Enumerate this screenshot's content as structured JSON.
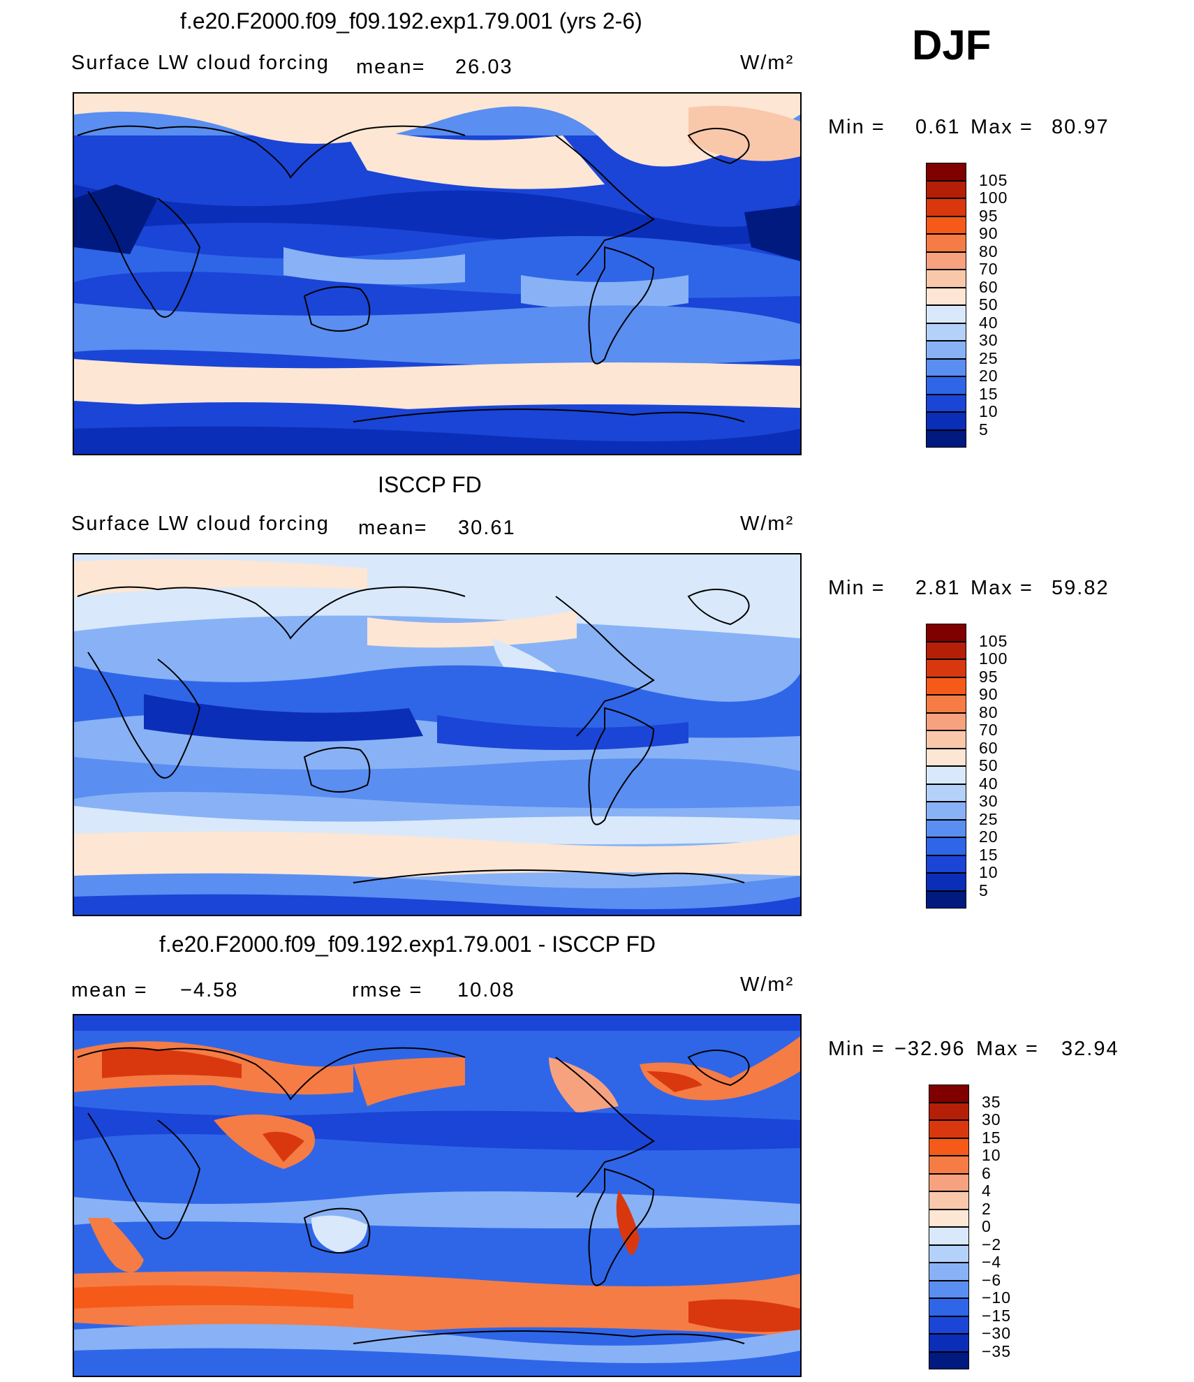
{
  "season": "DJF",
  "units": "W/m²",
  "panels": [
    {
      "title": "f.e20.F2000.f09_f09.192.exp1.79.001 (yrs 2-6)",
      "subtitle": "Surface LW cloud forcing",
      "mean_label": "mean=",
      "mean_value": "26.03",
      "min_label": "Min =",
      "min_value": "0.61",
      "max_label": "Max =",
      "max_value": "80.97",
      "colorbar_labels": [
        "105",
        "100",
        "95",
        "90",
        "80",
        "70",
        "60",
        "50",
        "40",
        "30",
        "25",
        "20",
        "15",
        "10",
        "5"
      ],
      "colorbar_colors": [
        "#800000",
        "#b51f08",
        "#d9380e",
        "#f55a19",
        "#f57c45",
        "#f7a27e",
        "#f9c8ab",
        "#fde6d3",
        "#d9e9fb",
        "#b4d1f9",
        "#88b2f5",
        "#5a8ef0",
        "#2f66e8",
        "#1a45d6",
        "#0b2eb8",
        "#001a80"
      ],
      "map_style": "model"
    },
    {
      "title": "ISCCP FD",
      "subtitle": "Surface LW cloud forcing",
      "mean_label": "mean=",
      "mean_value": "30.61",
      "min_label": "Min =",
      "min_value": "2.81",
      "max_label": "Max =",
      "max_value": "59.82",
      "colorbar_labels": [
        "105",
        "100",
        "95",
        "90",
        "80",
        "70",
        "60",
        "50",
        "40",
        "30",
        "25",
        "20",
        "15",
        "10",
        "5"
      ],
      "colorbar_colors": [
        "#800000",
        "#b51f08",
        "#d9380e",
        "#f55a19",
        "#f57c45",
        "#f7a27e",
        "#f9c8ab",
        "#fde6d3",
        "#d9e9fb",
        "#b4d1f9",
        "#88b2f5",
        "#5a8ef0",
        "#2f66e8",
        "#1a45d6",
        "#0b2eb8",
        "#001a80"
      ],
      "map_style": "obs"
    },
    {
      "title": "f.e20.F2000.f09_f09.192.exp1.79.001 - ISCCP FD",
      "mean_label": "mean =",
      "mean_value": "−4.58",
      "rmse_label": "rmse =",
      "rmse_value": "10.08",
      "min_label": "Min =",
      "min_value": "−32.96",
      "max_label": "Max =",
      "max_value": "32.94",
      "colorbar_labels": [
        "35",
        "30",
        "15",
        "10",
        "6",
        "4",
        "2",
        "0",
        "−2",
        "−4",
        "−6",
        "−10",
        "−15",
        "−30",
        "−35"
      ],
      "colorbar_colors": [
        "#800000",
        "#b51f08",
        "#d9380e",
        "#f55a19",
        "#f57c45",
        "#f7a27e",
        "#f9c8ab",
        "#fde6d3",
        "#d9e9fb",
        "#b4d1f9",
        "#88b2f5",
        "#5a8ef0",
        "#2f66e8",
        "#1a45d6",
        "#0b2eb8",
        "#001a80"
      ],
      "map_style": "diff"
    }
  ]
}
